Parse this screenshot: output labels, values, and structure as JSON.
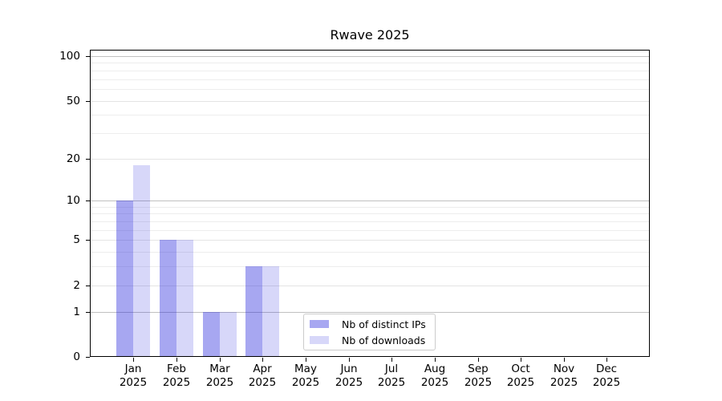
{
  "chart_data": {
    "type": "bar",
    "title": "Rwave 2025",
    "months": [
      "Jan",
      "Feb",
      "Mar",
      "Apr",
      "May",
      "Jun",
      "Jul",
      "Aug",
      "Sep",
      "Oct",
      "Nov",
      "Dec"
    ],
    "year_label": "2025",
    "series": [
      {
        "name": "Nb of distinct IPs",
        "color": "rgba(34,34,221,0.40)",
        "values": [
          10,
          5,
          1,
          3,
          0,
          0,
          0,
          0,
          0,
          0,
          0,
          0
        ]
      },
      {
        "name": "Nb of downloads",
        "color": "rgba(34,34,221,0.18)",
        "values": [
          18,
          5,
          1,
          3,
          0,
          0,
          0,
          0,
          0,
          0,
          0,
          0
        ]
      }
    ],
    "yscale": "log1p",
    "ylim": [
      0,
      110
    ],
    "yticks": [
      0,
      1,
      2,
      5,
      10,
      20,
      50,
      100
    ],
    "decade_gridlines": [
      1,
      10,
      100
    ],
    "minor_gridlines": [
      3,
      4,
      6,
      7,
      8,
      9,
      30,
      40,
      60,
      70,
      80,
      90
    ],
    "grid": true,
    "legend_position": "lower center"
  },
  "colors": {
    "background": "#ffffff",
    "spine": "#000000",
    "grid_decade": "#c0c0c0",
    "grid_major": "#e4e4e4",
    "grid_minor": "#ededed",
    "legend_border": "#cccccc",
    "text": "#000000"
  }
}
